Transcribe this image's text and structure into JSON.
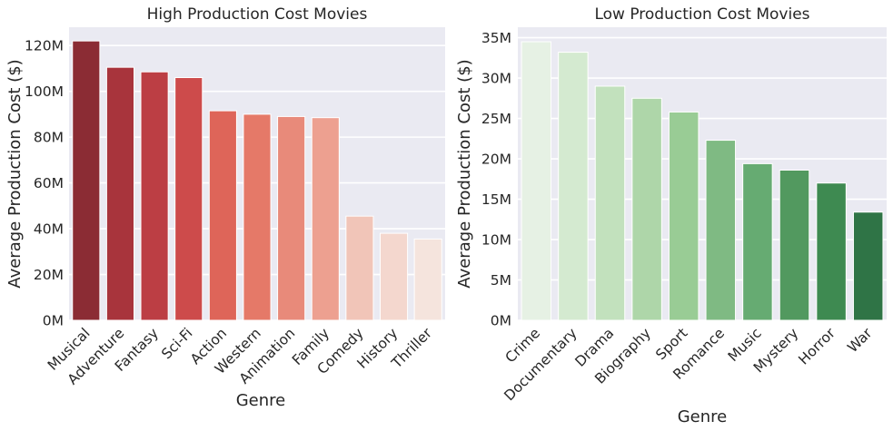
{
  "chart_data": [
    {
      "type": "bar",
      "title": "High Production Cost Movies",
      "xlabel": "Genre",
      "ylabel": "Average Production Cost ($)",
      "categories": [
        "Musical",
        "Adventure",
        "Fantasy",
        "Sci-Fi",
        "Action",
        "Western",
        "Animation",
        "Family",
        "Comedy",
        "History",
        "Thriller"
      ],
      "values": [
        122,
        110.5,
        108.5,
        106,
        91.5,
        90,
        89,
        88.5,
        45.5,
        38,
        35.5
      ],
      "value_unit": "M",
      "ylim": [
        0,
        128
      ],
      "yticks": [
        0,
        20,
        40,
        60,
        80,
        100,
        120
      ],
      "ytick_labels": [
        "0M",
        "20M",
        "40M",
        "60M",
        "80M",
        "100M",
        "120M"
      ],
      "grid": true,
      "colors": [
        "#8b2c34",
        "#a8343c",
        "#bc3e44",
        "#cd4b4b",
        "#de6559",
        "#e57968",
        "#e88a7a",
        "#eda090",
        "#f1c5b8",
        "#f4d7ce",
        "#f5e4dd"
      ]
    },
    {
      "type": "bar",
      "title": "Low Production Cost Movies",
      "xlabel": "Genre",
      "ylabel": "Average Production Cost ($)",
      "categories": [
        "Crime",
        "Documentary",
        "Drama",
        "Biography",
        "Sport",
        "Romance",
        "Music",
        "Mystery",
        "Horror",
        "War"
      ],
      "values": [
        34.5,
        33.2,
        29,
        27.5,
        25.8,
        22.3,
        19.4,
        18.6,
        17,
        13.4
      ],
      "value_unit": "M",
      "ylim": [
        0,
        36.3
      ],
      "yticks": [
        0,
        5,
        10,
        15,
        20,
        25,
        30,
        35
      ],
      "ytick_labels": [
        "0M",
        "5M",
        "10M",
        "15M",
        "20M",
        "25M",
        "30M",
        "35M"
      ],
      "grid": true,
      "colors": [
        "#e6f1e4",
        "#d4ead0",
        "#c2e1bd",
        "#aed6a9",
        "#99cc95",
        "#7fba83",
        "#66ab72",
        "#52995f",
        "#3e8a51",
        "#2f7446"
      ]
    }
  ]
}
